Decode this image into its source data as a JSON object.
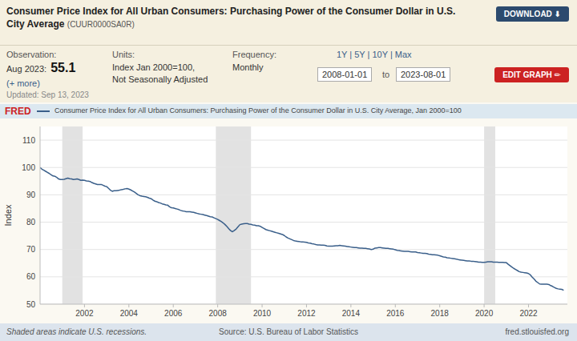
{
  "chart_data": {
    "type": "line",
    "title": "Consumer Price Index for All Urban Consumers: Purchasing Power of the Consumer Dollar in U.S. City Average",
    "subtitle": "(CUUR0000SA0R)",
    "y_label": "Index",
    "annotations": [
      "Observation:",
      "Aug 2023:",
      "55.1",
      "(+ more)",
      "Updated: Sep 13, 2023",
      "Units:",
      "Index Jan 2000=100,",
      "Not Seasonally Adjusted",
      "Frequency:",
      "Monthly",
      "1Y | 5Y | 10Y | Max",
      "2008-01-01",
      "to",
      "2023-08-01",
      "DOWNLOAD  ⬇",
      "EDIT GRAPH  ✏",
      "FRED",
      "Shaded areas indicate U.S. recessions.",
      "Source: U.S. Bureau of Labor Statistics",
      "fred.stlouisfed.org"
    ],
    "x": [
      2000.0,
      2000.083,
      2000.167,
      2000.25,
      2000.333,
      2000.417,
      2000.5,
      2000.583,
      2000.667,
      2000.75,
      2000.833,
      2000.917,
      2001.0,
      2001.083,
      2001.167,
      2001.25,
      2001.333,
      2001.417,
      2001.5,
      2001.583,
      2001.667,
      2001.75,
      2001.833,
      2001.917,
      2002.0,
      2002.083,
      2002.167,
      2002.25,
      2002.333,
      2002.417,
      2002.5,
      2002.583,
      2002.667,
      2002.75,
      2002.833,
      2002.917,
      2003.0,
      2003.083,
      2003.167,
      2003.25,
      2003.333,
      2003.417,
      2003.5,
      2003.583,
      2003.667,
      2003.75,
      2003.833,
      2003.917,
      2004.0,
      2004.083,
      2004.167,
      2004.25,
      2004.333,
      2004.417,
      2004.5,
      2004.583,
      2004.667,
      2004.75,
      2004.833,
      2004.917,
      2005.0,
      2005.083,
      2005.167,
      2005.25,
      2005.333,
      2005.417,
      2005.5,
      2005.583,
      2005.667,
      2005.75,
      2005.833,
      2005.917,
      2006.0,
      2006.083,
      2006.167,
      2006.25,
      2006.333,
      2006.417,
      2006.5,
      2006.583,
      2006.667,
      2006.75,
      2006.833,
      2006.917,
      2007.0,
      2007.083,
      2007.167,
      2007.25,
      2007.333,
      2007.417,
      2007.5,
      2007.583,
      2007.667,
      2007.75,
      2007.833,
      2007.917,
      2008.0,
      2008.083,
      2008.167,
      2008.25,
      2008.333,
      2008.417,
      2008.5,
      2008.583,
      2008.667,
      2008.75,
      2008.833,
      2008.917,
      2009.0,
      2009.083,
      2009.167,
      2009.25,
      2009.333,
      2009.417,
      2009.5,
      2009.583,
      2009.667,
      2009.75,
      2009.833,
      2009.917,
      2010.0,
      2010.083,
      2010.167,
      2010.25,
      2010.333,
      2010.417,
      2010.5,
      2010.583,
      2010.667,
      2010.75,
      2010.833,
      2010.917,
      2011.0,
      2011.083,
      2011.167,
      2011.25,
      2011.333,
      2011.417,
      2011.5,
      2011.583,
      2011.667,
      2011.75,
      2011.833,
      2011.917,
      2012.0,
      2012.083,
      2012.167,
      2012.25,
      2012.333,
      2012.417,
      2012.5,
      2012.583,
      2012.667,
      2012.75,
      2012.833,
      2012.917,
      2013.0,
      2013.083,
      2013.167,
      2013.25,
      2013.333,
      2013.417,
      2013.5,
      2013.583,
      2013.667,
      2013.75,
      2013.833,
      2013.917,
      2014.0,
      2014.083,
      2014.167,
      2014.25,
      2014.333,
      2014.417,
      2014.5,
      2014.583,
      2014.667,
      2014.75,
      2014.833,
      2014.917,
      2015.0,
      2015.083,
      2015.167,
      2015.25,
      2015.333,
      2015.417,
      2015.5,
      2015.583,
      2015.667,
      2015.75,
      2015.833,
      2015.917,
      2016.0,
      2016.083,
      2016.167,
      2016.25,
      2016.333,
      2016.417,
      2016.5,
      2016.583,
      2016.667,
      2016.75,
      2016.833,
      2016.917,
      2017.0,
      2017.083,
      2017.167,
      2017.25,
      2017.333,
      2017.417,
      2017.5,
      2017.583,
      2017.667,
      2017.75,
      2017.833,
      2017.917,
      2018.0,
      2018.083,
      2018.167,
      2018.25,
      2018.333,
      2018.417,
      2018.5,
      2018.583,
      2018.667,
      2018.75,
      2018.833,
      2018.917,
      2019.0,
      2019.083,
      2019.167,
      2019.25,
      2019.333,
      2019.417,
      2019.5,
      2019.583,
      2019.667,
      2019.75,
      2019.833,
      2019.917,
      2020.0,
      2020.083,
      2020.167,
      2020.25,
      2020.333,
      2020.417,
      2020.5,
      2020.583,
      2020.667,
      2020.75,
      2020.833,
      2020.917,
      2021.0,
      2021.083,
      2021.167,
      2021.25,
      2021.333,
      2021.417,
      2021.5,
      2021.583,
      2021.667,
      2021.75,
      2021.833,
      2021.917,
      2022.0,
      2022.083,
      2022.167,
      2022.25,
      2022.333,
      2022.417,
      2022.5,
      2022.583,
      2022.667,
      2022.75,
      2022.833,
      2022.917,
      2023.0,
      2023.083,
      2023.167,
      2023.25,
      2023.333,
      2023.417,
      2023.5,
      2023.583
    ],
    "series": [
      {
        "name": "Consumer Price Index for All Urban Consumers: Purchasing Power of the Consumer Dollar in U.S. City Average, Jan 2000=100",
        "color": "#3a5f8a",
        "values": [
          100.0,
          99.4,
          99.0,
          98.6,
          98.2,
          97.8,
          97.3,
          96.9,
          96.8,
          96.4,
          95.8,
          95.6,
          95.6,
          95.7,
          95.9,
          96.1,
          95.9,
          95.8,
          95.6,
          95.7,
          95.8,
          95.6,
          95.3,
          95.4,
          95.3,
          95.1,
          95.0,
          94.9,
          94.5,
          94.2,
          94.0,
          93.8,
          93.8,
          93.8,
          93.5,
          93.2,
          93.0,
          92.4,
          91.7,
          91.3,
          91.5,
          91.5,
          91.6,
          91.7,
          91.9,
          92.0,
          92.2,
          92.3,
          92.1,
          91.8,
          91.4,
          91.0,
          90.5,
          90.0,
          89.7,
          89.5,
          89.4,
          89.3,
          89.1,
          88.8,
          88.6,
          88.1,
          87.7,
          87.5,
          87.2,
          87.0,
          86.7,
          86.5,
          86.3,
          86.2,
          85.6,
          85.3,
          85.2,
          85.0,
          84.8,
          84.6,
          84.3,
          84.1,
          84.0,
          83.8,
          83.8,
          83.8,
          83.7,
          83.6,
          83.4,
          83.2,
          83.0,
          82.9,
          82.8,
          82.6,
          82.4,
          82.2,
          82.0,
          81.9,
          81.6,
          81.3,
          81.0,
          80.6,
          80.2,
          79.7,
          79.1,
          78.4,
          77.6,
          76.9,
          76.5,
          77.0,
          77.5,
          78.3,
          79.1,
          79.3,
          79.4,
          79.5,
          79.5,
          79.3,
          79.2,
          79.0,
          78.9,
          78.7,
          78.7,
          78.5,
          78.1,
          77.7,
          77.3,
          77.1,
          76.9,
          76.7,
          76.5,
          76.3,
          76.1,
          75.9,
          75.7,
          75.5,
          75.1,
          74.6,
          74.2,
          73.9,
          73.6,
          73.3,
          73.1,
          73.0,
          72.9,
          72.8,
          72.8,
          72.7,
          72.6,
          72.4,
          72.3,
          72.1,
          72.0,
          71.8,
          71.7,
          71.7,
          71.6,
          71.6,
          71.5,
          71.3,
          71.2,
          71.2,
          71.2,
          71.3,
          71.4,
          71.4,
          71.5,
          71.4,
          71.3,
          71.2,
          71.1,
          71.0,
          70.9,
          70.8,
          70.7,
          70.7,
          70.6,
          70.5,
          70.5,
          70.4,
          70.4,
          70.3,
          70.2,
          70.0,
          70.1,
          70.5,
          70.6,
          70.7,
          70.7,
          70.6,
          70.5,
          70.4,
          70.4,
          70.3,
          70.2,
          70.1,
          69.9,
          69.7,
          69.6,
          69.5,
          69.4,
          69.3,
          69.3,
          69.3,
          69.2,
          69.1,
          69.1,
          69.1,
          68.9,
          68.8,
          68.7,
          68.6,
          68.6,
          68.5,
          68.3,
          68.2,
          68.1,
          68.1,
          68.0,
          67.9,
          67.7,
          67.5,
          67.3,
          67.2,
          67.0,
          66.9,
          66.8,
          66.7,
          66.6,
          66.5,
          66.3,
          66.2,
          66.1,
          66.0,
          65.9,
          65.8,
          65.8,
          65.7,
          65.7,
          65.6,
          65.5,
          65.4,
          65.4,
          65.3,
          65.3,
          65.4,
          65.5,
          65.5,
          65.5,
          65.4,
          65.4,
          65.4,
          65.3,
          65.3,
          65.3,
          65.2,
          65.2,
          64.6,
          64.1,
          63.6,
          63.1,
          62.7,
          62.3,
          61.9,
          61.7,
          61.6,
          61.5,
          61.4,
          61.2,
          60.7,
          59.9,
          59.2,
          58.4,
          57.9,
          57.4,
          57.3,
          57.3,
          57.3,
          57.3,
          57.2,
          56.8,
          56.5,
          56.1,
          55.8,
          55.6,
          55.5,
          55.4,
          55.1
        ]
      }
    ],
    "recessions": [
      [
        2001.0,
        2001.917
      ],
      [
        2007.917,
        2009.5
      ],
      [
        2020.0,
        2020.5
      ]
    ],
    "xlim": [
      2000.0,
      2023.75
    ],
    "xticks": [
      2002,
      2004,
      2006,
      2008,
      2010,
      2012,
      2014,
      2016,
      2018,
      2020,
      2022
    ],
    "ylim": [
      50,
      115
    ],
    "yticks": [
      50,
      60,
      70,
      80,
      90,
      100,
      110
    ],
    "grid": true,
    "legend": "top-left"
  }
}
